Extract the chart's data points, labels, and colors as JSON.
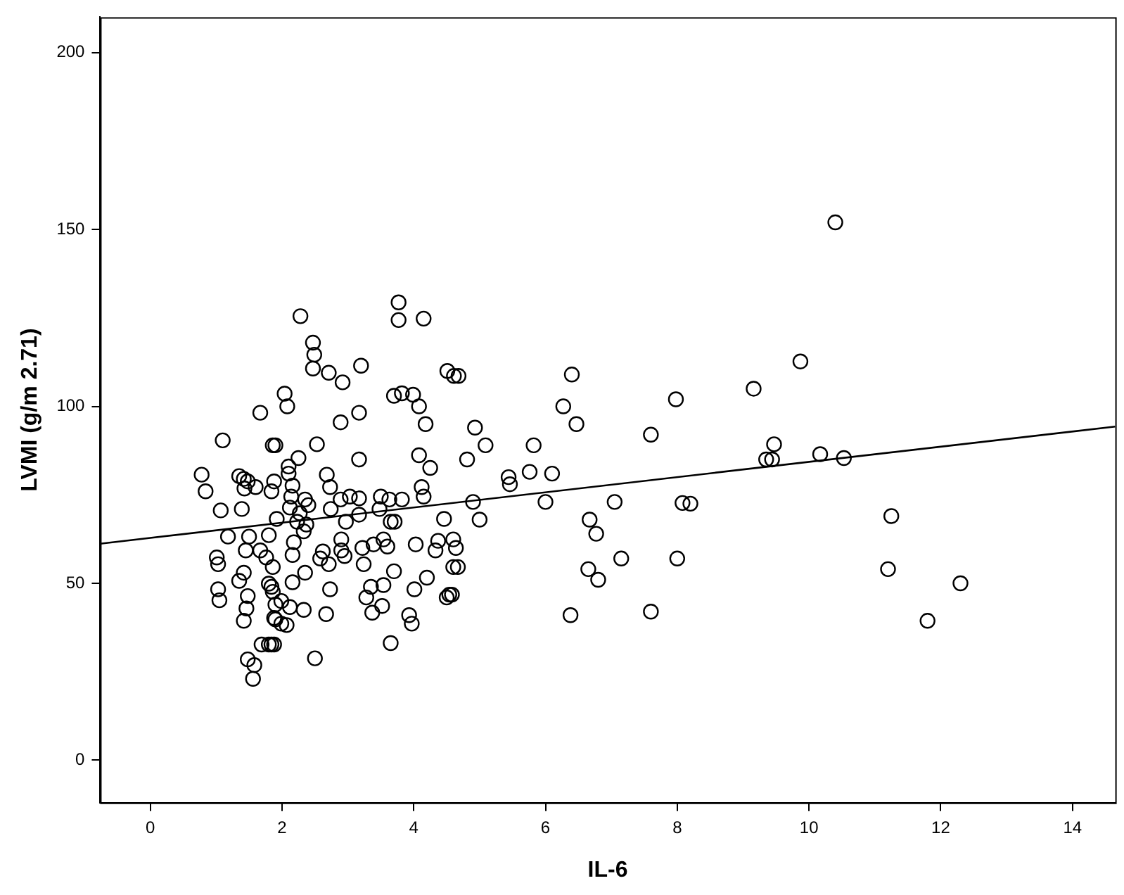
{
  "chart_data": {
    "type": "scatter",
    "xlabel": "IL-6",
    "ylabel": "LVMI (g/m 2.71)",
    "xlim": [
      -0.76,
      14.65
    ],
    "ylim": [
      -12,
      210
    ],
    "xticks": [
      0,
      2,
      4,
      6,
      8,
      10,
      12,
      14
    ],
    "yticks": [
      0,
      50,
      100,
      150,
      200
    ],
    "grid": false,
    "legend": false,
    "marker": "circle",
    "series": [
      {
        "color": "#000000",
        "x": [
          2.28,
          3.77,
          3.77,
          4.15,
          2.47,
          2.49,
          2.47,
          2.71,
          3.2,
          2.92,
          4.51,
          4.68,
          2.04,
          2.08,
          2.89,
          3.17,
          3.7,
          3.82,
          3.99,
          4.08,
          4.18,
          2.53,
          1.9,
          3.17,
          4.08,
          4.25,
          2.25,
          2.1,
          2.1,
          2.68,
          2.73,
          2.16,
          3.03,
          3.17,
          2.89,
          3.5,
          3.63,
          3.82,
          4.12,
          4.15,
          2.14,
          2.35,
          2.4,
          2.12,
          2.27,
          2.74,
          3.17,
          3.48,
          1.92,
          2.23,
          2.37,
          2.33,
          2.97,
          3.65,
          3.71,
          4.46,
          2.18,
          2.9,
          4.37,
          4.6,
          2.62,
          2.9,
          2.95,
          2.58,
          2.71,
          2.16,
          3.22,
          3.39,
          3.54,
          3.6,
          4.03,
          4.33,
          4.67,
          3.24,
          2.35,
          3.7,
          4.2,
          4.01,
          3.93,
          3.97,
          2.73,
          3.54,
          3.35,
          2.16,
          3.28,
          3.52,
          3.37,
          4.54,
          4.5,
          1.84,
          1.99,
          2.12,
          2.33,
          1.9,
          2.07,
          2.67,
          1.84,
          3.65,
          2.5,
          1.67,
          1.1,
          1.86,
          0.78,
          0.84,
          1.35,
          1.42,
          1.48,
          1.43,
          1.6,
          1.84,
          1.88,
          1.07,
          1.39,
          1.18,
          1.5,
          1.8,
          1.45,
          1.67,
          1.76,
          1.01,
          1.03,
          1.86,
          1.42,
          1.35,
          1.8,
          1.86,
          1.03,
          1.05,
          1.48,
          1.46,
          1.42,
          1.9,
          1.88,
          1.99,
          1.69,
          1.8,
          1.88,
          1.48,
          1.58,
          1.56,
          4.61,
          6.4,
          6.27,
          6.47,
          4.93,
          5.09,
          4.81,
          5.82,
          6.1,
          5.44,
          5.46,
          5.76,
          7.98,
          7.6,
          9.16,
          9.44,
          4.9,
          5.0,
          6.0,
          7.05,
          8.08,
          8.2,
          6.67,
          6.77,
          7.15,
          8.0,
          6.65,
          6.8,
          6.38,
          7.6,
          4.6,
          4.58,
          4.64,
          9.47,
          9.35,
          10.17,
          10.53,
          11.25,
          11.2,
          12.3,
          11.8,
          9.87,
          10.4
        ],
        "values": [
          125.5,
          129.4,
          124.4,
          124.8,
          118,
          114.6,
          110.7,
          109.5,
          111.5,
          106.8,
          110,
          108.6,
          103.6,
          100,
          95.5,
          98.2,
          103,
          103.7,
          103.3,
          100,
          95,
          89.3,
          89,
          85,
          86.2,
          82.6,
          85.4,
          83,
          81,
          80.7,
          77.2,
          77.6,
          74.5,
          74,
          73.7,
          74.5,
          73.7,
          73.7,
          77.2,
          74.5,
          74.5,
          73.7,
          72.1,
          71.4,
          69.8,
          71,
          69.4,
          71,
          68.2,
          67.4,
          66.6,
          64.7,
          67.4,
          67.4,
          67.4,
          68.2,
          61.6,
          62.4,
          62,
          62.4,
          59,
          59.3,
          57.7,
          57,
          55.4,
          58,
          60,
          61,
          62.4,
          60.4,
          61,
          59.3,
          54.6,
          55.4,
          53,
          53.4,
          51.6,
          48.3,
          41,
          38.6,
          48.3,
          49.5,
          49,
          50.3,
          46,
          43.6,
          41.7,
          46.8,
          46,
          49,
          45,
          43.3,
          42.5,
          39.8,
          38.2,
          41.3,
          32.7,
          33.1,
          28.8,
          98.2,
          90.4,
          89,
          80.7,
          76,
          80.3,
          79.5,
          78.8,
          76.8,
          77.2,
          76,
          78.8,
          70.6,
          71,
          63.2,
          63.2,
          63.6,
          59.3,
          59.3,
          57.3,
          57.3,
          55.4,
          54.6,
          53,
          50.7,
          49.9,
          47.6,
          48.3,
          45.2,
          46.4,
          42.9,
          39.4,
          44,
          40.2,
          38.6,
          32.7,
          32.7,
          32.7,
          28.5,
          26.9,
          23,
          108.6,
          109,
          100,
          95,
          94,
          89,
          85,
          89,
          81,
          80,
          78,
          81.5,
          102,
          92,
          105,
          85,
          73,
          68,
          73,
          73,
          72.7,
          72.5,
          68,
          64,
          57,
          57,
          54,
          51,
          41,
          42,
          54.6,
          46.8,
          60,
          89.3,
          85,
          86.5,
          85.4,
          69,
          54,
          50,
          39.4,
          112.7,
          152
        ]
      },
      {
        "type": "line",
        "color": "#000000",
        "marker": "none",
        "x": [
          -0.76,
          14.65
        ],
        "values": [
          61.2,
          94.3
        ]
      }
    ]
  }
}
